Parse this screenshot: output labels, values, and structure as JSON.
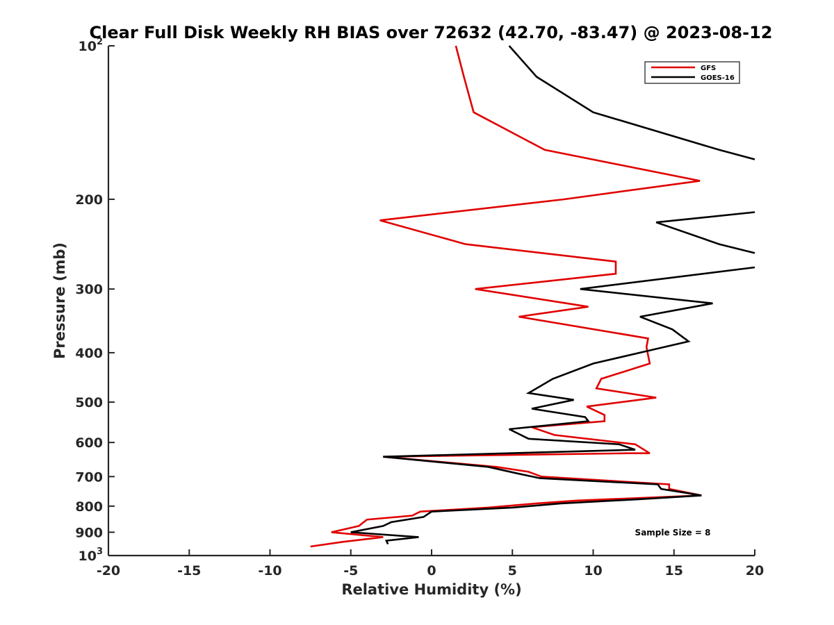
{
  "chart_data": {
    "type": "line",
    "title": "Clear Full Disk Weekly RH BIAS over 72632 (42.70, -83.47) @ 2023-08-12",
    "xlabel": "Relative Humidity (%)",
    "ylabel": "Pressure (mb)",
    "xlim": [
      -20,
      20
    ],
    "ylim": [
      100,
      1000
    ],
    "y_scale": "log",
    "y_reversed": true,
    "grid": false,
    "legend_placement": "top-right",
    "x_ticks": [
      "-20",
      "-15",
      "-10",
      "-5",
      "0",
      "5",
      "10",
      "15",
      "20"
    ],
    "y_ticks": [
      {
        "value": 100,
        "base": "10",
        "exp": "2"
      },
      {
        "value": 200,
        "label": "200"
      },
      {
        "value": 300,
        "label": "300"
      },
      {
        "value": 400,
        "label": "400"
      },
      {
        "value": 500,
        "label": "500"
      },
      {
        "value": 600,
        "label": "600"
      },
      {
        "value": 700,
        "label": "700"
      },
      {
        "value": 800,
        "label": "800"
      },
      {
        "value": 900,
        "label": "900"
      },
      {
        "value": 1000,
        "base": "10",
        "exp": "3"
      }
    ],
    "annotation": "Sample Size = 8",
    "series": [
      {
        "name": "GFS",
        "color": "#e00000",
        "points": [
          [
            1.5,
            100
          ],
          [
            2.0,
            115
          ],
          [
            2.6,
            135
          ],
          [
            7.0,
            160
          ],
          [
            16.6,
            184
          ],
          [
            8.2,
            200
          ],
          [
            -3.2,
            220
          ],
          [
            2.1,
            245
          ],
          [
            11.4,
            265
          ],
          [
            11.4,
            280
          ],
          [
            2.7,
            300
          ],
          [
            9.7,
            325
          ],
          [
            5.4,
            340
          ],
          [
            13.4,
            375
          ],
          [
            13.3,
            390
          ],
          [
            13.5,
            420
          ],
          [
            10.5,
            450
          ],
          [
            10.2,
            470
          ],
          [
            13.9,
            490
          ],
          [
            9.6,
            510
          ],
          [
            10.7,
            530
          ],
          [
            10.7,
            545
          ],
          [
            6.2,
            560
          ],
          [
            7.6,
            580
          ],
          [
            12.6,
            605
          ],
          [
            13.5,
            630
          ],
          [
            12.1,
            630
          ],
          [
            -3.0,
            640
          ],
          [
            4.0,
            670
          ],
          [
            6.0,
            685
          ],
          [
            6.8,
            700
          ],
          [
            14.7,
            725
          ],
          [
            14.7,
            740
          ],
          [
            16.7,
            762
          ],
          [
            9.0,
            780
          ],
          [
            6.5,
            790
          ],
          [
            3.5,
            805
          ],
          [
            -0.7,
            820
          ],
          [
            -1.2,
            835
          ],
          [
            -4.0,
            850
          ],
          [
            -4.5,
            875
          ],
          [
            -6.2,
            900
          ],
          [
            -3.0,
            920
          ],
          [
            -5.5,
            940
          ],
          [
            -7.5,
            960
          ]
        ]
      },
      {
        "name": "GOES-16",
        "color": "#000000",
        "points": [
          [
            4.8,
            100
          ],
          [
            6.5,
            115
          ],
          [
            10.0,
            135
          ],
          [
            17.8,
            160
          ],
          [
            20.0,
            167
          ],
          [
            null,
            null
          ],
          [
            20.0,
            212
          ],
          [
            13.9,
            222
          ],
          [
            17.8,
            245
          ],
          [
            20.0,
            255
          ],
          [
            null,
            null
          ],
          [
            20.0,
            272
          ],
          [
            9.2,
            300
          ],
          [
            17.4,
            320
          ],
          [
            12.9,
            340
          ],
          [
            14.9,
            360
          ],
          [
            15.9,
            380
          ],
          [
            10.0,
            420
          ],
          [
            7.5,
            450
          ],
          [
            6.0,
            480
          ],
          [
            8.8,
            495
          ],
          [
            6.2,
            515
          ],
          [
            9.5,
            535
          ],
          [
            9.7,
            545
          ],
          [
            4.8,
            565
          ],
          [
            6.0,
            590
          ],
          [
            11.6,
            605
          ],
          [
            12.6,
            620
          ],
          [
            -3.0,
            640
          ],
          [
            3.5,
            670
          ],
          [
            5.3,
            690
          ],
          [
            6.7,
            705
          ],
          [
            14.0,
            725
          ],
          [
            14.2,
            740
          ],
          [
            16.7,
            762
          ],
          [
            13.0,
            775
          ],
          [
            8.0,
            790
          ],
          [
            5.0,
            805
          ],
          [
            0.0,
            820
          ],
          [
            -0.5,
            840
          ],
          [
            -2.5,
            860
          ],
          [
            -3.0,
            875
          ],
          [
            -5.0,
            900
          ],
          [
            -0.8,
            920
          ],
          [
            -2.8,
            935
          ],
          [
            -2.7,
            950
          ]
        ]
      }
    ]
  }
}
